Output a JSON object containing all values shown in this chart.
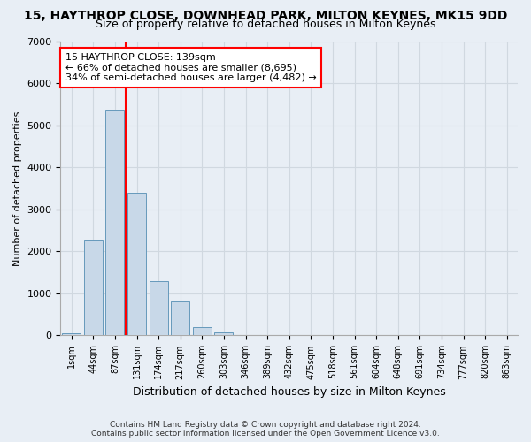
{
  "title": "15, HAYTHROP CLOSE, DOWNHEAD PARK, MILTON KEYNES, MK15 9DD",
  "subtitle": "Size of property relative to detached houses in Milton Keynes",
  "xlabel": "Distribution of detached houses by size in Milton Keynes",
  "ylabel": "Number of detached properties",
  "footer_line1": "Contains HM Land Registry data © Crown copyright and database right 2024.",
  "footer_line2": "Contains public sector information licensed under the Open Government Licence v3.0.",
  "bin_labels": [
    "1sqm",
    "44sqm",
    "87sqm",
    "131sqm",
    "174sqm",
    "217sqm",
    "260sqm",
    "303sqm",
    "346sqm",
    "389sqm",
    "432sqm",
    "475sqm",
    "518sqm",
    "561sqm",
    "604sqm",
    "648sqm",
    "691sqm",
    "734sqm",
    "777sqm",
    "820sqm",
    "863sqm"
  ],
  "bar_values": [
    50,
    2250,
    5350,
    3400,
    1300,
    800,
    190,
    80,
    10,
    0,
    0,
    0,
    0,
    0,
    0,
    0,
    0,
    0,
    0,
    0,
    0
  ],
  "bar_color": "#c8d8e8",
  "bar_edge_color": "#6699bb",
  "grid_color": "#d0d8e0",
  "background_color": "#e8eef5",
  "vline_pos": 2.5,
  "vline_color": "red",
  "annotation_text": "15 HAYTHROP CLOSE: 139sqm\n← 66% of detached houses are smaller (8,695)\n34% of semi-detached houses are larger (4,482) →",
  "annotation_box_color": "white",
  "annotation_box_edge": "red",
  "ylim": [
    0,
    7000
  ],
  "yticks": [
    0,
    1000,
    2000,
    3000,
    4000,
    5000,
    6000,
    7000
  ]
}
